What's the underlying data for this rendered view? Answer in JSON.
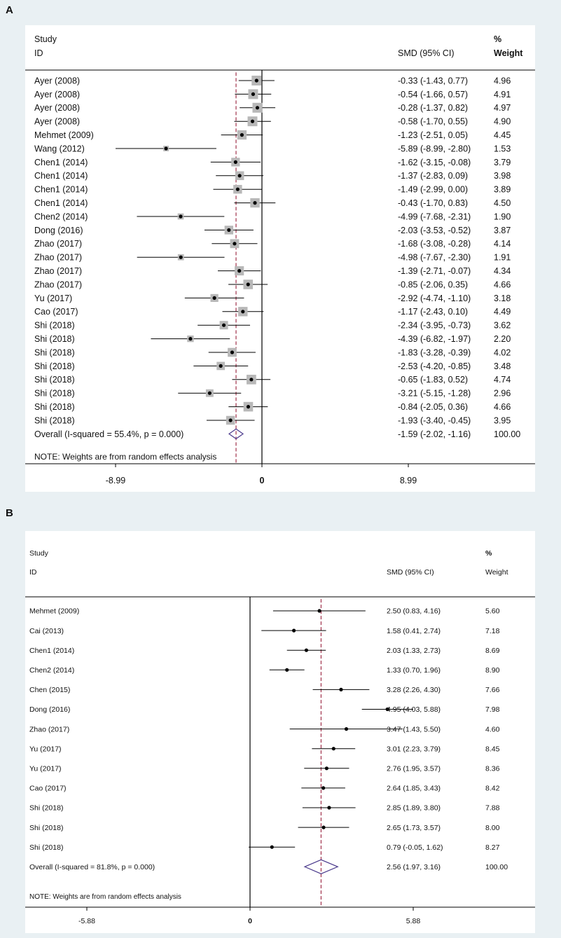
{
  "chart_data": [
    {
      "type": "forest",
      "panel": "A",
      "header": {
        "study": "Study",
        "id": "ID",
        "effect": "SMD (95% CI)",
        "pct": "%",
        "weight": "Weight"
      },
      "studies": [
        {
          "label": "Ayer (2008)",
          "est": -0.33,
          "lo": -1.43,
          "hi": 0.77,
          "text": "-0.33 (-1.43, 0.77)",
          "weight": "4.96"
        },
        {
          "label": "Ayer (2008)",
          "est": -0.54,
          "lo": -1.66,
          "hi": 0.57,
          "text": "-0.54 (-1.66, 0.57)",
          "weight": "4.91"
        },
        {
          "label": "Ayer (2008)",
          "est": -0.28,
          "lo": -1.37,
          "hi": 0.82,
          "text": "-0.28 (-1.37, 0.82)",
          "weight": "4.97"
        },
        {
          "label": "Ayer (2008)",
          "est": -0.58,
          "lo": -1.7,
          "hi": 0.55,
          "text": "-0.58 (-1.70, 0.55)",
          "weight": "4.90"
        },
        {
          "label": "Mehmet  (2009)",
          "est": -1.23,
          "lo": -2.51,
          "hi": 0.05,
          "text": "-1.23 (-2.51, 0.05)",
          "weight": "4.45"
        },
        {
          "label": "Wang (2012)",
          "est": -5.89,
          "lo": -8.99,
          "hi": -2.8,
          "text": "-5.89 (-8.99, -2.80)",
          "weight": "1.53"
        },
        {
          "label": "Chen1 (2014)",
          "est": -1.62,
          "lo": -3.15,
          "hi": -0.08,
          "text": "-1.62 (-3.15, -0.08)",
          "weight": "3.79"
        },
        {
          "label": "Chen1 (2014)",
          "est": -1.37,
          "lo": -2.83,
          "hi": 0.09,
          "text": "-1.37 (-2.83, 0.09)",
          "weight": "3.98"
        },
        {
          "label": "Chen1 (2014)",
          "est": -1.49,
          "lo": -2.99,
          "hi": 0.0,
          "text": "-1.49 (-2.99, 0.00)",
          "weight": "3.89"
        },
        {
          "label": "Chen1 (2014)",
          "est": -0.43,
          "lo": -1.7,
          "hi": 0.83,
          "text": "-0.43 (-1.70, 0.83)",
          "weight": "4.50"
        },
        {
          "label": "Chen2 (2014)",
          "est": -4.99,
          "lo": -7.68,
          "hi": -2.31,
          "text": "-4.99 (-7.68, -2.31)",
          "weight": "1.90"
        },
        {
          "label": "Dong (2016)",
          "est": -2.03,
          "lo": -3.53,
          "hi": -0.52,
          "text": "-2.03 (-3.53, -0.52)",
          "weight": "3.87"
        },
        {
          "label": "Zhao (2017)",
          "est": -1.68,
          "lo": -3.08,
          "hi": -0.28,
          "text": "-1.68 (-3.08, -0.28)",
          "weight": "4.14"
        },
        {
          "label": "Zhao (2017)",
          "est": -4.98,
          "lo": -7.67,
          "hi": -2.3,
          "text": "-4.98 (-7.67, -2.30)",
          "weight": "1.91"
        },
        {
          "label": "Zhao (2017)",
          "est": -1.39,
          "lo": -2.71,
          "hi": -0.07,
          "text": "-1.39 (-2.71, -0.07)",
          "weight": "4.34"
        },
        {
          "label": "Zhao (2017)",
          "est": -0.85,
          "lo": -2.06,
          "hi": 0.35,
          "text": "-0.85 (-2.06, 0.35)",
          "weight": "4.66"
        },
        {
          "label": "Yu (2017)",
          "est": -2.92,
          "lo": -4.74,
          "hi": -1.1,
          "text": "-2.92 (-4.74, -1.10)",
          "weight": "3.18"
        },
        {
          "label": "Cao (2017)",
          "est": -1.17,
          "lo": -2.43,
          "hi": 0.1,
          "text": "-1.17 (-2.43, 0.10)",
          "weight": "4.49"
        },
        {
          "label": "Shi (2018)",
          "est": -2.34,
          "lo": -3.95,
          "hi": -0.73,
          "text": "-2.34 (-3.95, -0.73)",
          "weight": "3.62"
        },
        {
          "label": "Shi (2018)",
          "est": -4.39,
          "lo": -6.82,
          "hi": -1.97,
          "text": "-4.39 (-6.82, -1.97)",
          "weight": "2.20"
        },
        {
          "label": "Shi (2018)",
          "est": -1.83,
          "lo": -3.28,
          "hi": -0.39,
          "text": "-1.83 (-3.28, -0.39)",
          "weight": "4.02"
        },
        {
          "label": "Shi (2018)",
          "est": -2.53,
          "lo": -4.2,
          "hi": -0.85,
          "text": "-2.53 (-4.20, -0.85)",
          "weight": "3.48"
        },
        {
          "label": "Shi (2018)",
          "est": -0.65,
          "lo": -1.83,
          "hi": 0.52,
          "text": "-0.65 (-1.83, 0.52)",
          "weight": "4.74"
        },
        {
          "label": "Shi (2018)",
          "est": -3.21,
          "lo": -5.15,
          "hi": -1.28,
          "text": "-3.21 (-5.15, -1.28)",
          "weight": "2.96"
        },
        {
          "label": "Shi (2018)",
          "est": -0.84,
          "lo": -2.05,
          "hi": 0.36,
          "text": "-0.84 (-2.05, 0.36)",
          "weight": "4.66"
        },
        {
          "label": "Shi (2018)",
          "est": -1.93,
          "lo": -3.4,
          "hi": -0.45,
          "text": "-1.93 (-3.40, -0.45)",
          "weight": "3.95"
        }
      ],
      "overall": {
        "label": "Overall  (I-squared = 55.4%, p = 0.000)",
        "est": -1.59,
        "lo": -2.02,
        "hi": -1.16,
        "text": "-1.59 (-2.02, -1.16)",
        "weight": "100.00"
      },
      "note": "NOTE: Weights are from random effects analysis",
      "xlim": [
        -8.99,
        8.99
      ],
      "ticks": [
        {
          "value": -8.99,
          "label": "-8.99"
        },
        {
          "value": 0,
          "label": "0"
        },
        {
          "value": 8.99,
          "label": "8.99"
        }
      ]
    },
    {
      "type": "forest",
      "panel": "B",
      "header": {
        "study": "Study",
        "id": "ID",
        "effect": "SMD (95% CI)",
        "pct": "%",
        "weight": "Weight"
      },
      "studies": [
        {
          "label": "Mehmet (2009)",
          "est": 2.5,
          "lo": 0.83,
          "hi": 4.16,
          "text": "2.50 (0.83, 4.16)",
          "weight": "5.60"
        },
        {
          "label": "Cai (2013)",
          "est": 1.58,
          "lo": 0.41,
          "hi": 2.74,
          "text": "1.58 (0.41, 2.74)",
          "weight": "7.18"
        },
        {
          "label": "Chen1 (2014)",
          "est": 2.03,
          "lo": 1.33,
          "hi": 2.73,
          "text": "2.03 (1.33, 2.73)",
          "weight": "8.69"
        },
        {
          "label": "Chen2 (2014)",
          "est": 1.33,
          "lo": 0.7,
          "hi": 1.96,
          "text": "1.33 (0.70, 1.96)",
          "weight": "8.90"
        },
        {
          "label": "Chen (2015)",
          "est": 3.28,
          "lo": 2.26,
          "hi": 4.3,
          "text": "3.28 (2.26, 4.30)",
          "weight": "7.66"
        },
        {
          "label": "Dong (2016)",
          "est": 4.95,
          "lo": 4.03,
          "hi": 5.88,
          "text": "4.95 (4.03, 5.88)",
          "weight": "7.98"
        },
        {
          "label": "Zhao (2017)",
          "est": 3.47,
          "lo": 1.43,
          "hi": 5.5,
          "text": "3.47 (1.43, 5.50)",
          "weight": "4.60"
        },
        {
          "label": "Yu (2017)",
          "est": 3.01,
          "lo": 2.23,
          "hi": 3.79,
          "text": "3.01 (2.23, 3.79)",
          "weight": "8.45"
        },
        {
          "label": "Yu (2017)",
          "est": 2.76,
          "lo": 1.95,
          "hi": 3.57,
          "text": "2.76 (1.95, 3.57)",
          "weight": "8.36"
        },
        {
          "label": "Cao (2017)",
          "est": 2.64,
          "lo": 1.85,
          "hi": 3.43,
          "text": "2.64 (1.85, 3.43)",
          "weight": "8.42"
        },
        {
          "label": "Shi (2018)",
          "est": 2.85,
          "lo": 1.89,
          "hi": 3.8,
          "text": "2.85 (1.89, 3.80)",
          "weight": "7.88"
        },
        {
          "label": "Shi (2018)",
          "est": 2.65,
          "lo": 1.73,
          "hi": 3.57,
          "text": "2.65 (1.73, 3.57)",
          "weight": "8.00"
        },
        {
          "label": "Shi (2018)",
          "est": 0.79,
          "lo": -0.05,
          "hi": 1.62,
          "text": "0.79 (-0.05, 1.62)",
          "weight": "8.27"
        }
      ],
      "overall": {
        "label": "Overall  (I-squared = 81.8%, p = 0.000)",
        "est": 2.56,
        "lo": 1.97,
        "hi": 3.16,
        "text": "2.56 (1.97, 3.16)",
        "weight": "100.00"
      },
      "note": "NOTE: Weights are from random effects analysis",
      "xlim": [
        -5.88,
        5.88
      ],
      "ticks": [
        {
          "value": -5.88,
          "label": "-5.88"
        },
        {
          "value": 0,
          "label": "0"
        },
        {
          "value": 5.88,
          "label": "5.88"
        }
      ]
    }
  ],
  "colors": {
    "diamond": "#4b3a8c",
    "dashed_line": "#a0304a",
    "weight_box": "#b8b8b8"
  }
}
